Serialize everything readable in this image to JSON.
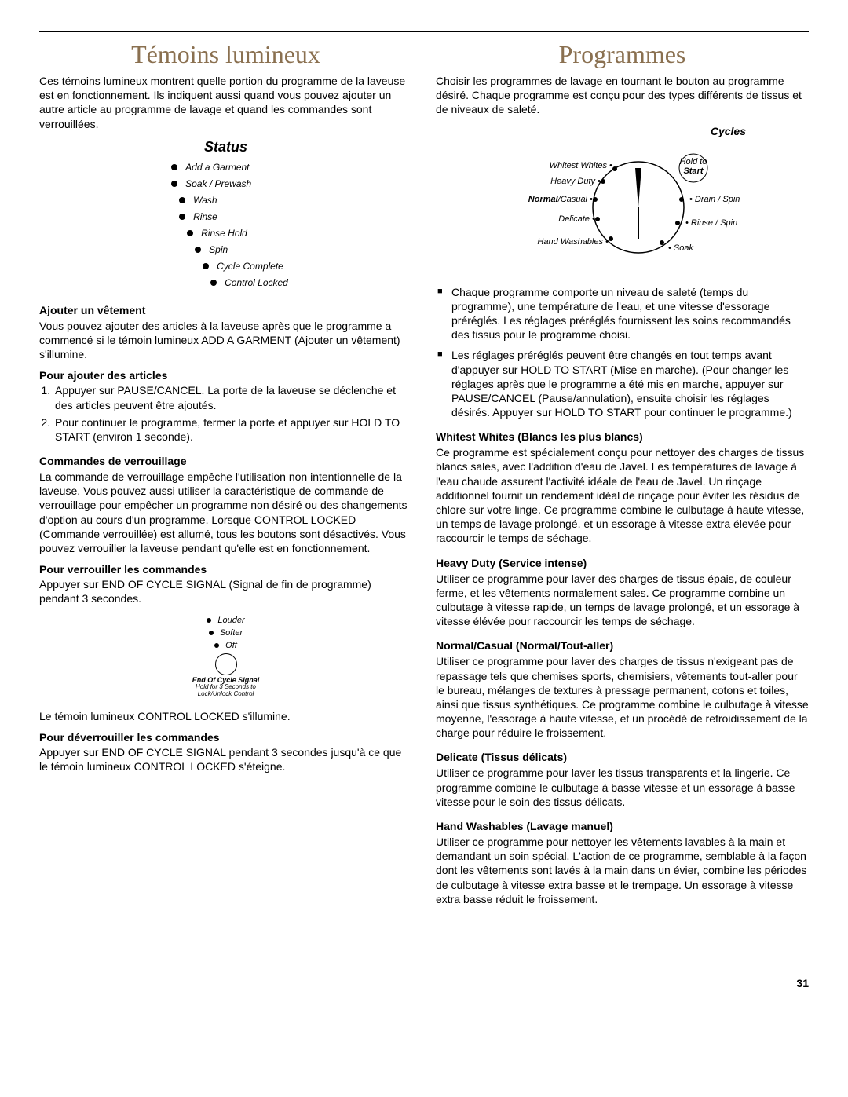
{
  "page_number": "31",
  "left": {
    "title": "Témoins lumineux",
    "intro": "Ces témoins lumineux montrent quelle portion du programme de la laveuse est en fonctionnement. Ils indiquent aussi quand vous pouvez ajouter un autre article au programme de lavage et quand les commandes sont verrouillées.",
    "status_heading": "Status",
    "status_items": [
      "Add a Garment",
      "Soak / Prewash",
      "Wash",
      "Rinse",
      "Rinse Hold",
      "Spin",
      "Cycle Complete",
      "Control Locked"
    ],
    "ajouter_heading": "Ajouter un vêtement",
    "ajouter_body": "Vous pouvez ajouter des articles à la laveuse après que le programme a commencé si le témoin lumineux ADD A GARMENT (Ajouter un vêtement) s'illumine.",
    "pour_ajouter_heading": "Pour ajouter des articles",
    "pour_ajouter_items": [
      "Appuyer sur PAUSE/CANCEL. La porte de la laveuse se déclenche et des articles peuvent être ajoutés.",
      "Pour continuer le programme, fermer la porte et appuyer sur HOLD TO START (environ 1 seconde)."
    ],
    "verrou_heading": "Commandes de verrouillage",
    "verrou_body": "La commande de verrouillage empêche l'utilisation non intentionnelle de la laveuse. Vous pouvez aussi utiliser la caractéristique de commande de verrouillage pour empêcher un programme non désiré ou des changements d'option au cours d'un programme. Lorsque CONTROL LOCKED (Commande verrouillée) est allumé, tous les boutons sont désactivés. Vous pouvez verrouiller la laveuse pendant qu'elle est en fonctionnement.",
    "pour_verrou_heading": "Pour verrouiller les commandes",
    "pour_verrou_body": "Appuyer sur END OF CYCLE SIGNAL (Signal de fin de programme) pendant 3 secondes.",
    "signal_items": [
      "Louder",
      "Softer",
      "Off"
    ],
    "signal_caption": "End Of Cycle Signal",
    "signal_sub": "Hold for 3 Seconds to\nLock/Unlock Control",
    "control_locked_line": "Le témoin lumineux CONTROL LOCKED s'illumine.",
    "pour_deverrou_heading": "Pour déverrouiller les commandes",
    "pour_deverrou_body": "Appuyer sur END OF CYCLE SIGNAL pendant 3 secondes jusqu'à ce que le témoin lumineux CONTROL LOCKED s'éteigne."
  },
  "right": {
    "title": "Programmes",
    "intro": "Choisir les programmes de lavage en tournant le bouton au programme désiré. Chaque programme est conçu pour des types différents de tissus et de niveaux de saleté.",
    "cycles_label": "Cycles",
    "dial": {
      "left_labels": [
        "Whitest Whites",
        "Heavy Duty",
        "Normal",
        "/Casual",
        "Delicate",
        "Hand Washables"
      ],
      "right_labels": [
        "Drain / Spin",
        "Rinse / Spin",
        "Soak"
      ],
      "start_top": "Hold to",
      "start": "Start"
    },
    "bullets": [
      "Chaque programme comporte un niveau de saleté (temps du programme), une température de l'eau, et une vitesse d'essorage préréglés. Les réglages préréglés fournissent les soins recommandés des tissus pour le programme choisi.",
      "Les réglages préréglés peuvent être changés en tout temps avant d'appuyer sur HOLD TO START (Mise en marche). (Pour changer les réglages après que le programme a été mis en marche, appuyer sur PAUSE/CANCEL (Pause/annulation), ensuite choisir les réglages désirés. Appuyer sur HOLD TO START pour continuer le programme.)"
    ],
    "sections": [
      {
        "heading": "Whitest Whites (Blancs les plus blancs)",
        "body": "Ce programme est spécialement conçu pour nettoyer des charges de tissus blancs sales, avec l'addition d'eau de Javel. Les températures de lavage à l'eau chaude assurent l'activité idéale de l'eau de Javel. Un rinçage additionnel fournit un rendement idéal de rinçage pour éviter les résidus de chlore sur votre linge. Ce programme combine le culbutage à haute vitesse, un temps de lavage prolongé, et un essorage à vitesse extra élevée pour raccourcir le temps de séchage."
      },
      {
        "heading": "Heavy Duty (Service intense)",
        "body": "Utiliser ce programme pour laver des charges de tissus épais, de couleur ferme, et les vêtements normalement sales. Ce programme combine un culbutage à vitesse rapide, un temps de lavage prolongé, et un essorage à vitesse élévée pour raccourcir les temps de séchage."
      },
      {
        "heading": "Normal/Casual (Normal/Tout-aller)",
        "body": "Utiliser ce programme pour laver des charges de tissus n'exigeant pas de repassage tels que chemises sports, chemisiers, vêtements tout-aller pour le bureau, mélanges de textures à pressage permanent, cotons et toiles, ainsi que tissus synthétiques. Ce programme combine le culbutage à vitesse moyenne, l'essorage à haute vitesse, et un procédé de refroidissement de la charge pour réduire le froissement."
      },
      {
        "heading": "Delicate (Tissus délicats)",
        "body": "Utiliser ce programme pour laver les tissus transparents et la lingerie. Ce programme combine le culbutage à basse vitesse et un essorage à basse vitesse pour le soin des tissus délicats."
      },
      {
        "heading": "Hand Washables (Lavage manuel)",
        "body": "Utiliser ce programme pour nettoyer les vêtements lavables à la main et demandant un soin spécial. L'action de ce programme, semblable à la façon dont les vêtements sont lavés à la main dans un évier, combine les périodes de culbutage à vitesse extra basse et le trempage. Un essorage à vitesse extra basse réduit le froissement."
      }
    ]
  }
}
